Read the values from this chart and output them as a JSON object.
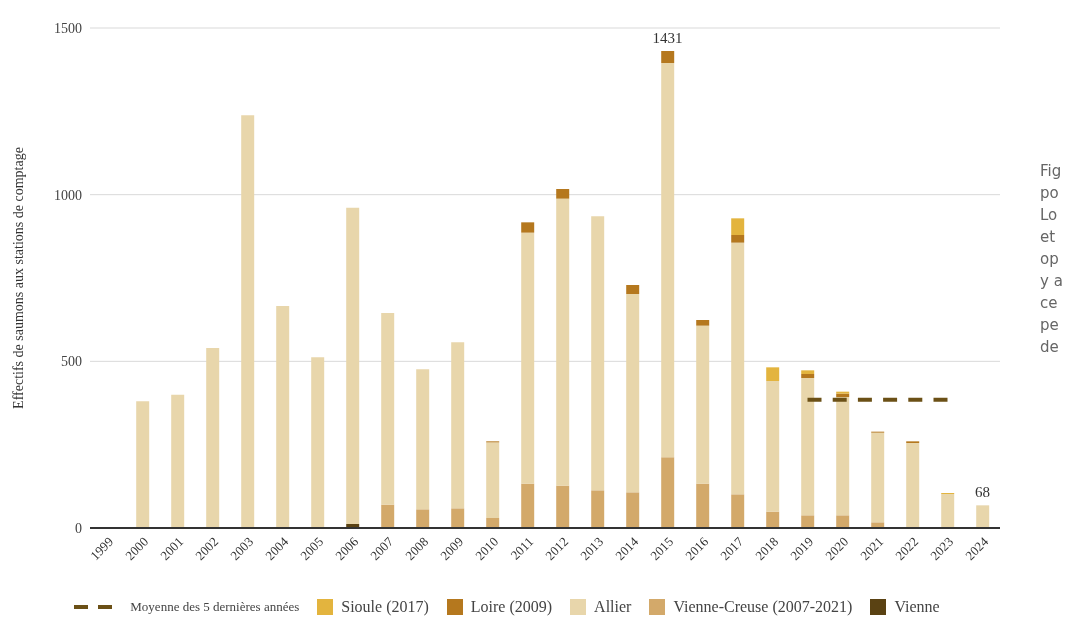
{
  "chart_data": {
    "type": "bar",
    "stacked": true,
    "ylabel": "Effectifs de saumons aux stations de comptage",
    "categories": [
      "1999",
      "2000",
      "2001",
      "2002",
      "2003",
      "2004",
      "2005",
      "2006",
      "2007",
      "2008",
      "2009",
      "2010",
      "2011",
      "2012",
      "2013",
      "2014",
      "2015",
      "2016",
      "2017",
      "2018",
      "2019",
      "2020",
      "2021",
      "2022",
      "2023",
      "2024"
    ],
    "series": [
      {
        "name": "Moyenne des 5 dernières années",
        "type": "line",
        "line_style": "dashed",
        "marker": "none",
        "color": "#6b5016",
        "values": [
          null,
          null,
          null,
          null,
          null,
          null,
          null,
          null,
          null,
          null,
          null,
          null,
          null,
          null,
          null,
          null,
          null,
          null,
          null,
          null,
          385,
          385,
          385,
          385,
          385,
          null
        ]
      },
      {
        "name": "Vienne",
        "color": "#5a4213",
        "values": [
          null,
          null,
          null,
          null,
          null,
          null,
          null,
          12,
          null,
          null,
          null,
          null,
          null,
          null,
          null,
          null,
          null,
          null,
          null,
          null,
          null,
          null,
          null,
          null,
          null,
          null
        ]
      },
      {
        "name": "Vienne-Creuse (2007-2021)",
        "color": "#d3a96a",
        "values": [
          null,
          null,
          null,
          null,
          null,
          null,
          null,
          null,
          70,
          56,
          59,
          30,
          133,
          127,
          113,
          107,
          212,
          133,
          101,
          49,
          38,
          38,
          17,
          null,
          null,
          null
        ]
      },
      {
        "name": "Allier",
        "color": "#e8d6ab",
        "values": [
          null,
          380,
          400,
          540,
          1238,
          666,
          512,
          949,
          575,
          420,
          498,
          227,
          753,
          861,
          822,
          595,
          1183,
          474,
          755,
          392,
          412,
          355,
          269,
          255,
          102,
          68
        ]
      },
      {
        "name": "Loire (2009)",
        "color": "#b5781e",
        "values": [
          null,
          null,
          null,
          null,
          null,
          null,
          null,
          null,
          null,
          null,
          null,
          3,
          31,
          29,
          null,
          27,
          36,
          17,
          23,
          null,
          12,
          10,
          3,
          5,
          null,
          null
        ]
      },
      {
        "name": "Sioule (2017)",
        "color": "#e3b43e",
        "values": [
          null,
          null,
          null,
          null,
          null,
          null,
          null,
          null,
          null,
          null,
          null,
          null,
          null,
          null,
          null,
          null,
          null,
          null,
          50,
          41,
          11,
          6,
          null,
          null,
          3,
          null
        ]
      }
    ],
    "totals": [
      null,
      null,
      null,
      null,
      null,
      null,
      null,
      null,
      null,
      null,
      null,
      null,
      null,
      null,
      null,
      null,
      "1431",
      null,
      null,
      null,
      null,
      null,
      null,
      null,
      null,
      "68"
    ],
    "ylim": [
      0,
      1500
    ],
    "yticks": [
      0,
      500,
      1000,
      1500
    ],
    "grid": "y",
    "legend": "bottom",
    "annotations": [
      "Fig",
      "po",
      "Lo",
      "et",
      "op",
      "y a",
      "ce",
      "pe",
      "de"
    ]
  }
}
